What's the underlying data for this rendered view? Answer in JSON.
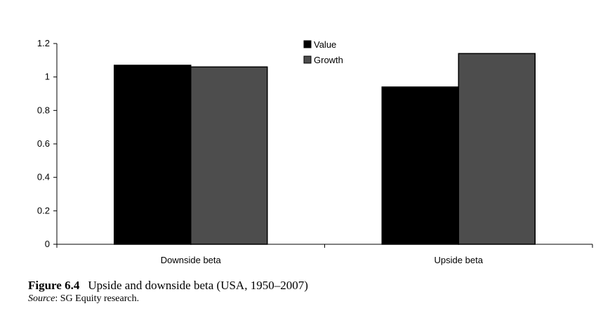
{
  "chart_data": {
    "type": "bar",
    "categories": [
      "Downside beta",
      "Upside beta"
    ],
    "series": [
      {
        "name": "Value",
        "values": [
          1.07,
          0.94
        ],
        "color": "#000000"
      },
      {
        "name": "Growth",
        "values": [
          1.06,
          1.14
        ],
        "color": "#4d4d4d"
      }
    ],
    "ylim": [
      0,
      1.2
    ],
    "yticks": [
      0,
      0.2,
      0.4,
      0.6,
      0.8,
      1,
      1.2
    ],
    "ytick_labels": [
      "0",
      "0.2",
      "0.4",
      "0.6",
      "0.8",
      "1",
      "1.2"
    ],
    "legend_position": "top-center",
    "grid": false,
    "xlabel": "",
    "ylabel": "",
    "title": ""
  },
  "caption": {
    "figure_label": "Figure  6.4",
    "title": "Upside and downside beta (USA, 1950–2007)",
    "source_label": "Source",
    "source_text": ": SG Equity research."
  }
}
